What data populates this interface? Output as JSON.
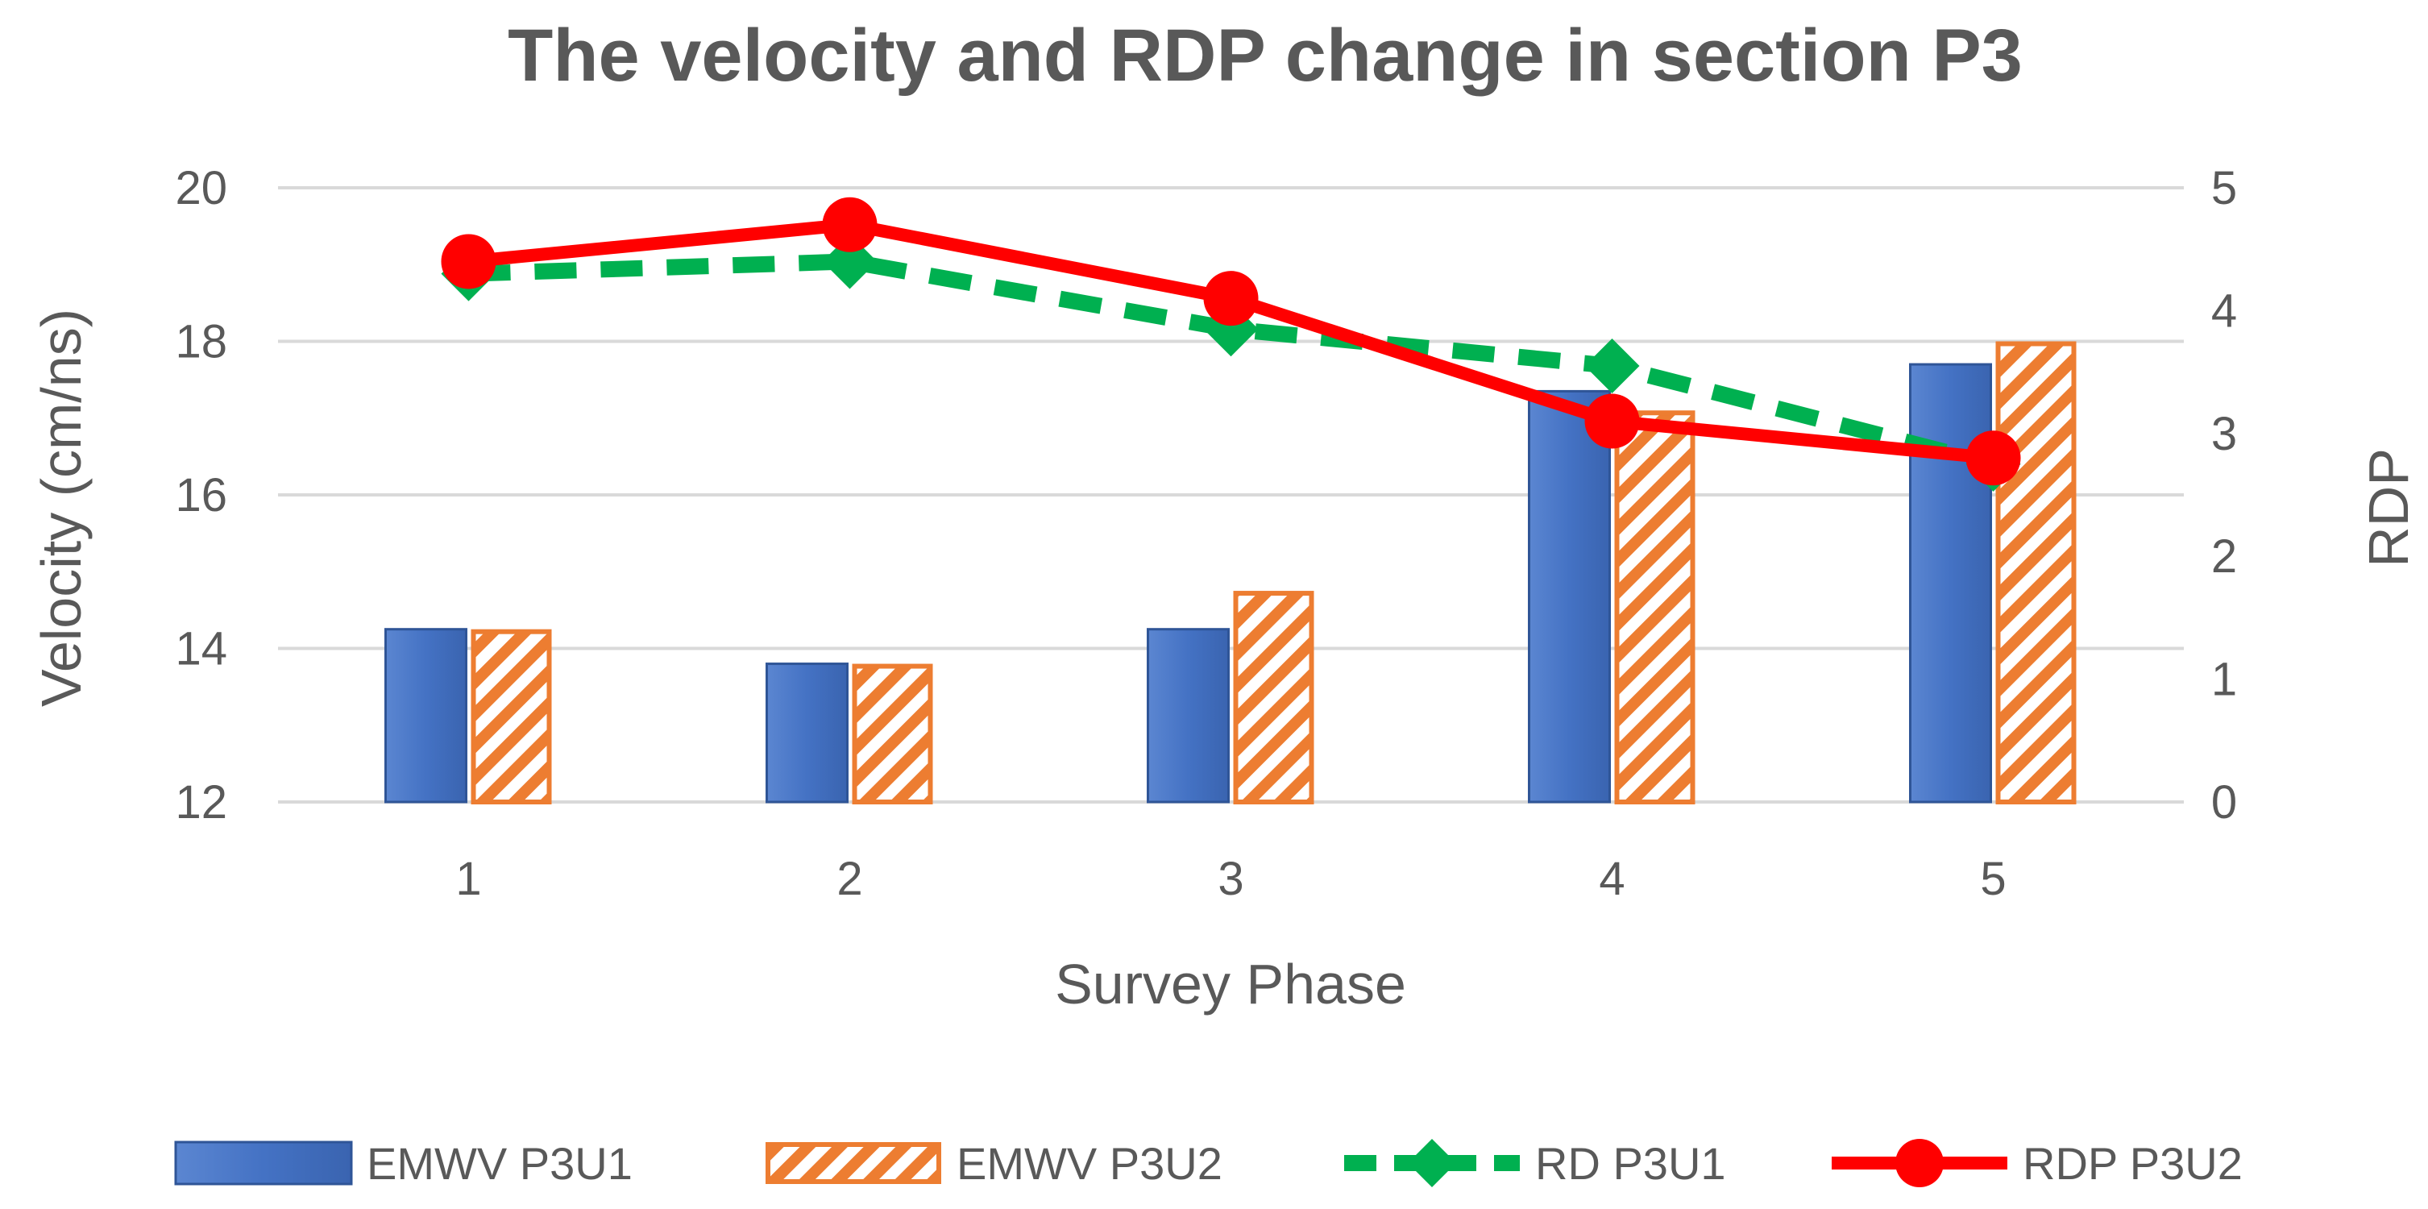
{
  "chart_data": {
    "type": "bar+line",
    "title": "The velocity and RDP change in section P3",
    "xlabel": "Survey Phase",
    "ylabel": "Velocity  (cm/ns)",
    "y2label": "RDP",
    "categories": [
      "1",
      "2",
      "3",
      "4",
      "5"
    ],
    "ylim": [
      12,
      20
    ],
    "yticks": [
      "12",
      "14",
      "16",
      "18",
      "20"
    ],
    "y2lim": [
      0,
      5
    ],
    "y2ticks": [
      "0",
      "1",
      "2",
      "3",
      "4",
      "5"
    ],
    "grid": true,
    "legend_position": "bottom",
    "series": [
      {
        "name": "EMWV P3U1",
        "kind": "bar",
        "axis": "left",
        "values": [
          14.25,
          13.8,
          14.25,
          17.35,
          17.7
        ],
        "color": "#4472C4"
      },
      {
        "name": "EMWV P3U2",
        "kind": "bar",
        "axis": "left",
        "values": [
          14.25,
          13.8,
          14.75,
          17.1,
          18.0
        ],
        "color": "#ED7D31",
        "pattern": "diagonal-stripes"
      },
      {
        "name": "RD P3U1",
        "kind": "line",
        "axis": "right",
        "values": [
          4.3,
          4.4,
          3.85,
          3.55,
          2.75
        ],
        "color": "#00B050",
        "style": "dashed",
        "marker": "diamond"
      },
      {
        "name": "RDP P3U2",
        "kind": "line",
        "axis": "right",
        "values": [
          4.4,
          4.7,
          4.1,
          3.1,
          2.8
        ],
        "color": "#FF0000",
        "style": "solid",
        "marker": "circle"
      }
    ]
  }
}
